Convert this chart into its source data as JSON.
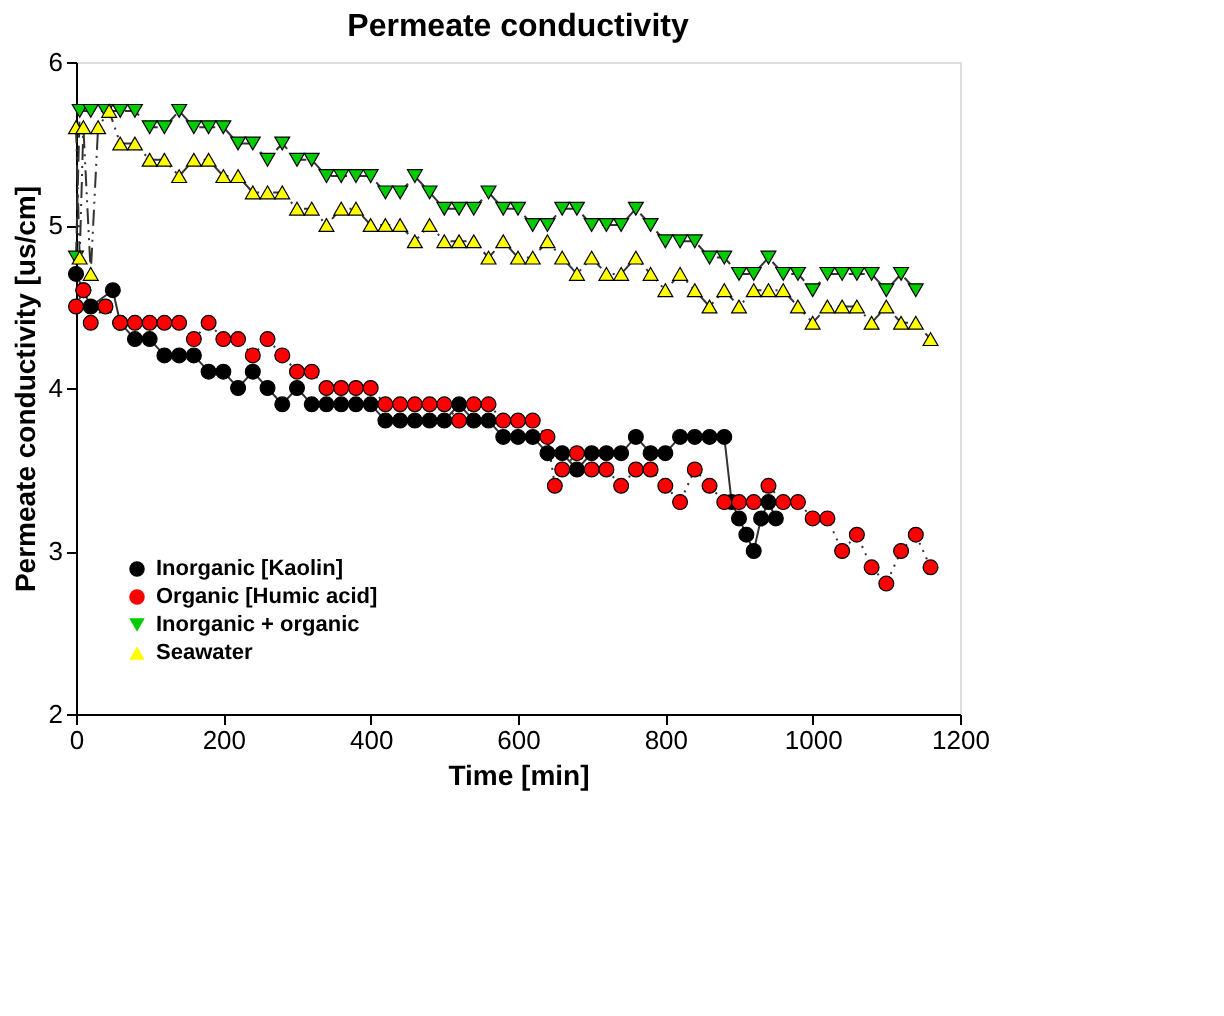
{
  "chart_data": {
    "type": "line",
    "title": "Permeate conductivity",
    "xlabel": "Time [min]",
    "ylabel": "Permeate conductivity [us/cm]",
    "xlim": [
      0,
      1200
    ],
    "xticks": [
      0,
      200,
      400,
      600,
      800,
      1000,
      1200
    ],
    "ylim": [
      2,
      6
    ],
    "yticks": [
      2,
      3,
      4,
      5,
      6
    ],
    "grid": false,
    "legend": "bottom left",
    "series": [
      {
        "name": "Inorganic [Kaolin]",
        "color": "#000000",
        "marker": "circle",
        "line_style": "solid",
        "x": [
          0,
          10,
          20,
          50,
          60,
          80,
          100,
          120,
          140,
          160,
          180,
          200,
          220,
          240,
          260,
          280,
          300,
          320,
          340,
          360,
          380,
          400,
          420,
          440,
          460,
          480,
          500,
          520,
          540,
          560,
          580,
          600,
          620,
          640,
          660,
          680,
          700,
          720,
          740,
          760,
          780,
          800,
          820,
          840,
          860,
          880,
          890,
          900,
          910,
          920,
          930,
          940,
          950
        ],
        "values": [
          4.7,
          4.6,
          4.5,
          4.6,
          4.4,
          4.3,
          4.3,
          4.2,
          4.2,
          4.2,
          4.1,
          4.1,
          4.0,
          4.1,
          4.0,
          3.9,
          4.0,
          3.9,
          3.9,
          3.9,
          3.9,
          3.9,
          3.8,
          3.8,
          3.8,
          3.8,
          3.8,
          3.9,
          3.8,
          3.8,
          3.7,
          3.7,
          3.7,
          3.6,
          3.6,
          3.5,
          3.6,
          3.6,
          3.6,
          3.7,
          3.6,
          3.6,
          3.7,
          3.7,
          3.7,
          3.7,
          3.3,
          3.2,
          3.1,
          3.0,
          3.2,
          3.3,
          3.2
        ]
      },
      {
        "name": "Organic [Humic acid]",
        "color": "#ff0000",
        "marker": "circle",
        "line_style": "dotted",
        "x": [
          0,
          10,
          20,
          40,
          60,
          80,
          100,
          120,
          140,
          160,
          180,
          200,
          220,
          240,
          260,
          280,
          300,
          320,
          340,
          360,
          380,
          400,
          420,
          440,
          460,
          480,
          500,
          520,
          540,
          560,
          580,
          600,
          620,
          640,
          650,
          660,
          680,
          700,
          720,
          740,
          760,
          780,
          800,
          820,
          840,
          860,
          880,
          900,
          920,
          940,
          960,
          980,
          1000,
          1020,
          1040,
          1060,
          1080,
          1100,
          1120,
          1140,
          1160
        ],
        "values": [
          4.5,
          4.6,
          4.4,
          4.5,
          4.4,
          4.4,
          4.4,
          4.4,
          4.4,
          4.3,
          4.4,
          4.3,
          4.3,
          4.2,
          4.3,
          4.2,
          4.1,
          4.1,
          4.0,
          4.0,
          4.0,
          4.0,
          3.9,
          3.9,
          3.9,
          3.9,
          3.9,
          3.8,
          3.9,
          3.9,
          3.8,
          3.8,
          3.8,
          3.7,
          3.4,
          3.5,
          3.6,
          3.5,
          3.5,
          3.4,
          3.5,
          3.5,
          3.4,
          3.3,
          3.5,
          3.4,
          3.3,
          3.3,
          3.3,
          3.4,
          3.3,
          3.3,
          3.2,
          3.2,
          3.0,
          3.1,
          2.9,
          2.8,
          3.0,
          3.1,
          2.9
        ]
      },
      {
        "name": "Inorganic + organic",
        "color": "#00cc00",
        "marker": "triangle-down",
        "line_style": "dashed",
        "x": [
          0,
          5,
          20,
          40,
          60,
          80,
          100,
          120,
          140,
          160,
          180,
          200,
          220,
          240,
          260,
          280,
          300,
          320,
          340,
          360,
          380,
          400,
          420,
          440,
          460,
          480,
          500,
          520,
          540,
          560,
          580,
          600,
          620,
          640,
          660,
          680,
          700,
          720,
          740,
          760,
          780,
          800,
          820,
          840,
          860,
          880,
          900,
          920,
          940,
          960,
          980,
          1000,
          1020,
          1040,
          1060,
          1080,
          1100,
          1120,
          1140
        ],
        "values": [
          4.8,
          5.7,
          5.7,
          5.7,
          5.7,
          5.7,
          5.6,
          5.6,
          5.7,
          5.6,
          5.6,
          5.6,
          5.5,
          5.5,
          5.4,
          5.5,
          5.4,
          5.4,
          5.3,
          5.3,
          5.3,
          5.3,
          5.2,
          5.2,
          5.3,
          5.2,
          5.1,
          5.1,
          5.1,
          5.2,
          5.1,
          5.1,
          5.0,
          5.0,
          5.1,
          5.1,
          5.0,
          5.0,
          5.0,
          5.1,
          5.0,
          4.9,
          4.9,
          4.9,
          4.8,
          4.8,
          4.7,
          4.7,
          4.8,
          4.7,
          4.7,
          4.6,
          4.7,
          4.7,
          4.7,
          4.7,
          4.6,
          4.7,
          4.6
        ]
      },
      {
        "name": "Seawater",
        "color": "#ffff00",
        "marker": "triangle",
        "line_style": "dashdot",
        "x": [
          0,
          5,
          10,
          20,
          30,
          45,
          60,
          80,
          100,
          120,
          140,
          160,
          180,
          200,
          220,
          240,
          260,
          280,
          300,
          320,
          340,
          360,
          380,
          400,
          420,
          440,
          460,
          480,
          500,
          520,
          540,
          560,
          580,
          600,
          620,
          640,
          660,
          680,
          700,
          720,
          740,
          760,
          780,
          800,
          820,
          840,
          860,
          880,
          900,
          920,
          940,
          960,
          980,
          1000,
          1020,
          1040,
          1060,
          1080,
          1100,
          1120,
          1140,
          1160
        ],
        "values": [
          5.6,
          4.8,
          5.6,
          4.7,
          5.6,
          5.7,
          5.5,
          5.5,
          5.4,
          5.4,
          5.3,
          5.4,
          5.4,
          5.3,
          5.3,
          5.2,
          5.2,
          5.2,
          5.1,
          5.1,
          5.0,
          5.1,
          5.1,
          5.0,
          5.0,
          5.0,
          4.9,
          5.0,
          4.9,
          4.9,
          4.9,
          4.8,
          4.9,
          4.8,
          4.8,
          4.9,
          4.8,
          4.7,
          4.8,
          4.7,
          4.7,
          4.8,
          4.7,
          4.6,
          4.7,
          4.6,
          4.5,
          4.6,
          4.5,
          4.6,
          4.6,
          4.6,
          4.5,
          4.4,
          4.5,
          4.5,
          4.5,
          4.4,
          4.5,
          4.4,
          4.4,
          4.3
        ]
      }
    ]
  }
}
